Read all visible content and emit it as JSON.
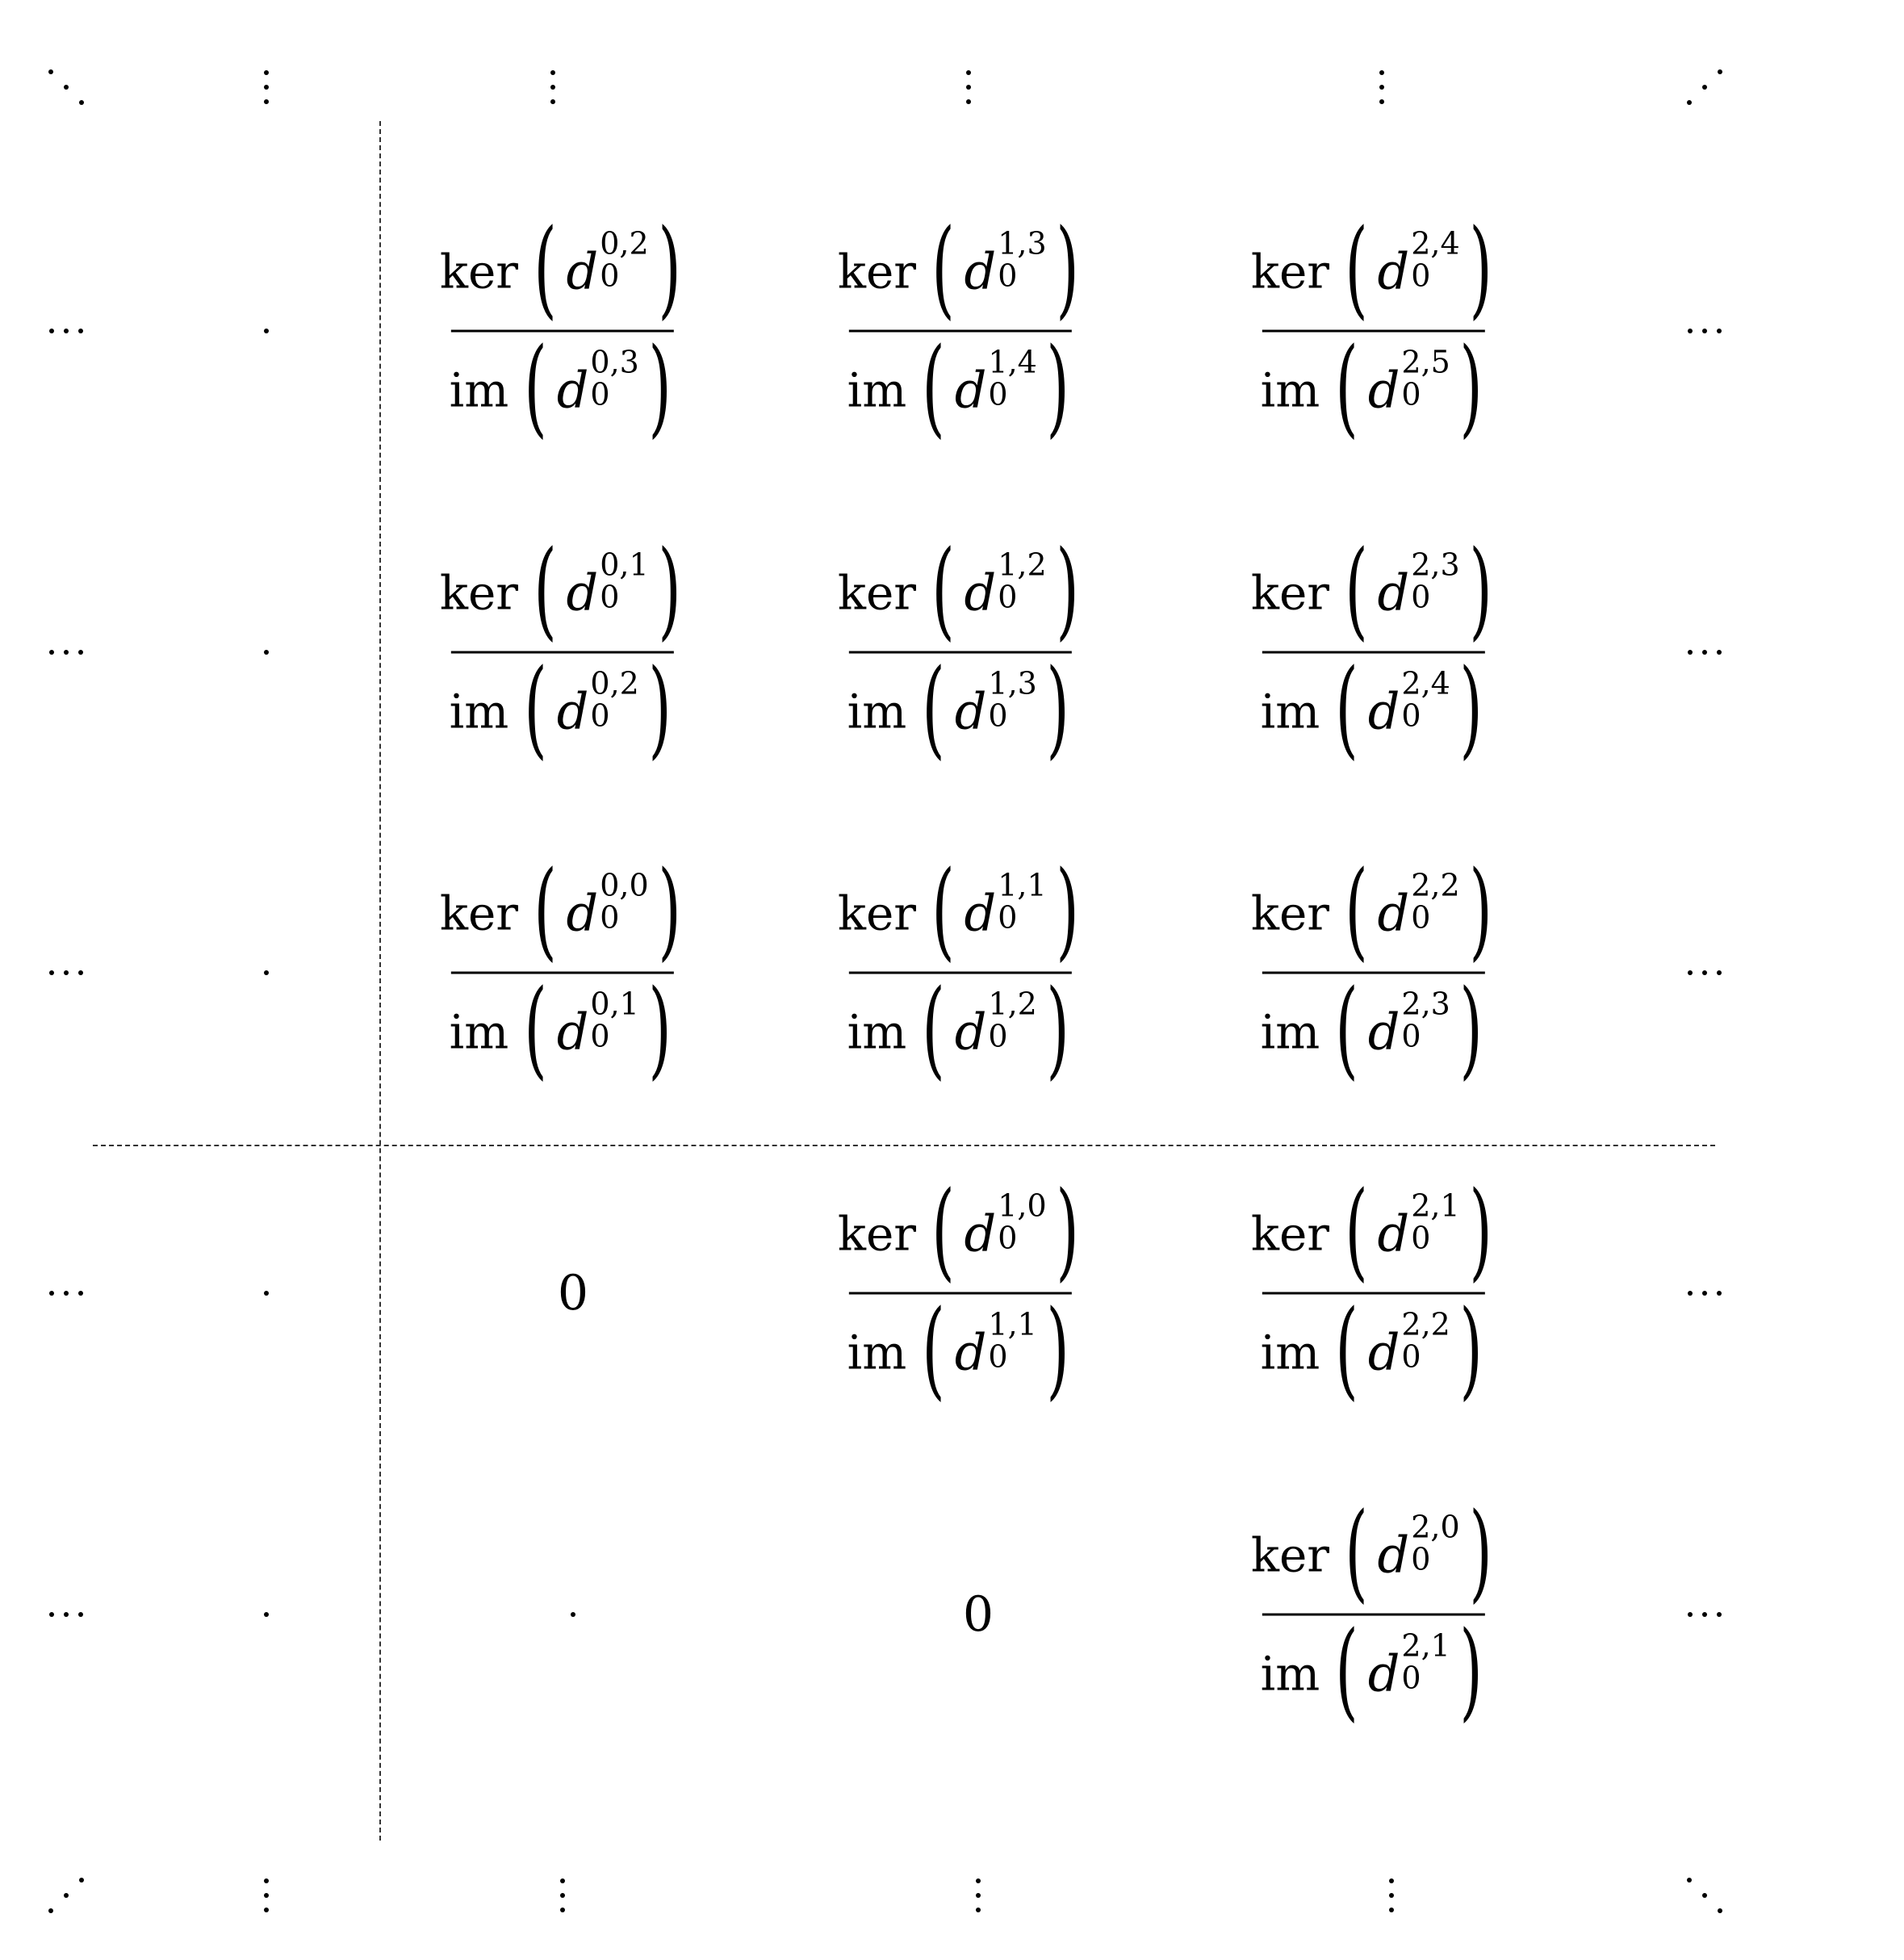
{
  "zero_label": "0",
  "operators": {
    "ker": "ker",
    "im": "im"
  },
  "symbol": {
    "d": "d",
    "subscript": "0"
  },
  "cells": [
    {
      "col": 2,
      "row": 1,
      "ker_sup": "0,2",
      "im_sup": "0,3"
    },
    {
      "col": 3,
      "row": 1,
      "ker_sup": "1,3",
      "im_sup": "1,4"
    },
    {
      "col": 4,
      "row": 1,
      "ker_sup": "2,4",
      "im_sup": "2,5"
    },
    {
      "col": 2,
      "row": 2,
      "ker_sup": "0,1",
      "im_sup": "0,2"
    },
    {
      "col": 3,
      "row": 2,
      "ker_sup": "1,2",
      "im_sup": "1,3"
    },
    {
      "col": 4,
      "row": 2,
      "ker_sup": "2,3",
      "im_sup": "2,4"
    },
    {
      "col": 2,
      "row": 3,
      "ker_sup": "0,0",
      "im_sup": "0,1"
    },
    {
      "col": 3,
      "row": 3,
      "ker_sup": "1,1",
      "im_sup": "1,2"
    },
    {
      "col": 4,
      "row": 3,
      "ker_sup": "2,2",
      "im_sup": "2,3"
    },
    {
      "col": 3,
      "row": 4,
      "ker_sup": "1,0",
      "im_sup": "1,1"
    },
    {
      "col": 4,
      "row": 4,
      "ker_sup": "2,1",
      "im_sup": "2,2"
    },
    {
      "col": 4,
      "row": 5,
      "ker_sup": "2,0",
      "im_sup": "2,1"
    }
  ],
  "zeros": [
    {
      "col": 2,
      "row": 4
    },
    {
      "col": 3,
      "row": 5
    }
  ],
  "single_dots": [
    {
      "col": 1,
      "row": 1
    },
    {
      "col": 1,
      "row": 2
    },
    {
      "col": 1,
      "row": 3
    },
    {
      "col": 1,
      "row": 4
    },
    {
      "col": 1,
      "row": 5
    },
    {
      "col": 2,
      "row": 5
    }
  ],
  "hdots": [
    {
      "col": 0,
      "row": 1
    },
    {
      "col": 0,
      "row": 2
    },
    {
      "col": 0,
      "row": 3
    },
    {
      "col": 0,
      "row": 4
    },
    {
      "col": 0,
      "row": 5
    },
    {
      "col": 5,
      "row": 1
    },
    {
      "col": 5,
      "row": 2
    },
    {
      "col": 5,
      "row": 3
    },
    {
      "col": 5,
      "row": 4
    },
    {
      "col": 5,
      "row": 5
    }
  ],
  "vdots": [
    {
      "col": 1,
      "row": 0
    },
    {
      "col": 2,
      "row": 0
    },
    {
      "col": 3,
      "row": 0
    },
    {
      "col": 4,
      "row": 0
    },
    {
      "col": 1,
      "row": 6
    },
    {
      "col": 2,
      "row": 6
    },
    {
      "col": 3,
      "row": 6
    },
    {
      "col": 4,
      "row": 6
    }
  ],
  "diagonal_dots": [
    {
      "col": 0,
      "row": 0,
      "kind": "ddots"
    },
    {
      "col": 5,
      "row": 0,
      "kind": "adots"
    },
    {
      "col": 0,
      "row": 6,
      "kind": "adots"
    },
    {
      "col": 5,
      "row": 6,
      "kind": "ddots"
    }
  ]
}
